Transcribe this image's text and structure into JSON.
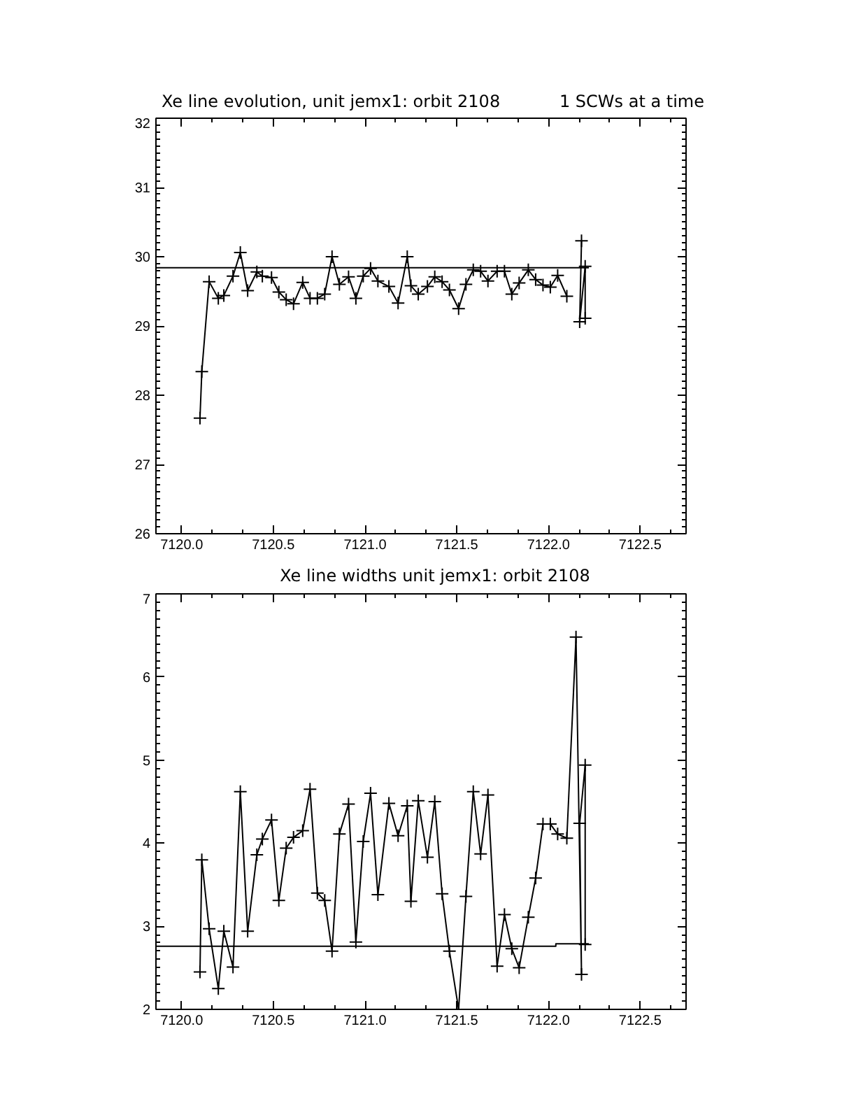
{
  "chart_data": [
    {
      "type": "line",
      "title": "Xe line evolution, unit jemx1: orbit 2108",
      "annotations": [
        "1 SCWs at a time"
      ],
      "x": [
        7120.1,
        7120.11,
        7120.15,
        7120.2,
        7120.23,
        7120.28,
        7120.32,
        7120.36,
        7120.41,
        7120.44,
        7120.49,
        7120.53,
        7120.57,
        7120.61,
        7120.66,
        7120.7,
        7120.74,
        7120.78,
        7120.82,
        7120.86,
        7120.91,
        7120.95,
        7120.99,
        7121.03,
        7121.07,
        7121.13,
        7121.18,
        7121.23,
        7121.25,
        7121.29,
        7121.34,
        7121.38,
        7121.42,
        7121.46,
        7121.51,
        7121.55,
        7121.59,
        7121.63,
        7121.67,
        7121.72,
        7121.76,
        7121.8,
        7121.84,
        7121.89,
        7121.93,
        7121.97,
        7122.01,
        7122.05,
        7122.1,
        7122.15,
        7122.18,
        7122.17,
        7122.2,
        7122.2
      ],
      "series": [
        {
          "color": "#000000",
          "values": [
            27.67,
            28.34,
            29.64,
            29.4,
            29.44,
            29.72,
            30.06,
            29.51,
            29.78,
            29.72,
            29.7,
            29.49,
            29.38,
            29.32,
            29.63,
            29.4,
            29.4,
            29.46,
            30.0,
            29.6,
            29.71,
            29.4,
            29.72,
            29.83,
            29.65,
            29.57,
            29.33,
            30.0,
            29.58,
            29.46,
            29.57,
            29.71,
            29.64,
            29.52,
            29.25,
            29.6,
            29.81,
            29.79,
            29.65,
            29.79,
            29.79,
            29.46,
            29.62,
            29.81,
            29.67,
            29.59,
            29.56,
            29.73,
            29.43,
            null,
            30.23,
            29.06,
            29.86,
            29.11
          ]
        },
        {
          "type": "line",
          "marker": "none",
          "color": "#000000",
          "x": [
            7119.86,
            7122.22
          ],
          "values": [
            29.84,
            29.84
          ]
        }
      ],
      "xlim": [
        7119.86,
        7122.75
      ],
      "xticks": [
        {
          "value": 7120,
          "label": "7120.0"
        },
        7120.5,
        {
          "value": 7121,
          "label": "7121.0"
        },
        7121.5,
        {
          "value": 7122,
          "label": "7122.0"
        },
        7122.5
      ],
      "ylim": [
        26,
        32
      ],
      "yticks": [
        26,
        27,
        28,
        29,
        30,
        31,
        32
      ],
      "grid": false,
      "marker": "cross",
      "line_style": "solid"
    },
    {
      "type": "line",
      "title": "Xe line widths unit jemx1: orbit 2108",
      "x": [
        7120.1,
        7120.11,
        7120.15,
        7120.2,
        7120.23,
        7120.28,
        7120.32,
        7120.36,
        7120.41,
        7120.44,
        7120.49,
        7120.53,
        7120.57,
        7120.61,
        7120.66,
        7120.7,
        7120.74,
        7120.78,
        7120.82,
        7120.86,
        7120.91,
        7120.95,
        7120.99,
        7121.03,
        7121.07,
        7121.13,
        7121.18,
        7121.23,
        7121.25,
        7121.29,
        7121.34,
        7121.38,
        7121.42,
        7121.46,
        7121.51,
        7121.55,
        7121.59,
        7121.63,
        7121.67,
        7121.72,
        7121.76,
        7121.8,
        7121.84,
        7121.89,
        7121.93,
        7121.97,
        7122.01,
        7122.05,
        7122.1,
        7122.15,
        7122.18,
        7122.17,
        7122.2,
        7122.2
      ],
      "series": [
        {
          "color": "#000000",
          "values": [
            2.45,
            3.8,
            2.97,
            2.25,
            2.94,
            2.51,
            4.62,
            2.94,
            3.86,
            4.05,
            4.28,
            3.31,
            3.94,
            4.07,
            4.15,
            4.65,
            3.4,
            3.31,
            2.7,
            4.11,
            4.47,
            2.81,
            4.02,
            4.6,
            3.38,
            4.48,
            4.09,
            4.45,
            3.3,
            4.51,
            3.83,
            4.5,
            3.39,
            2.7,
            2.0,
            3.36,
            4.62,
            3.87,
            4.58,
            2.52,
            3.14,
            2.73,
            2.5,
            3.11,
            3.58,
            4.23,
            4.23,
            4.11,
            4.06,
            6.48,
            2.42,
            4.24,
            4.94,
            2.78
          ]
        },
        {
          "type": "line",
          "marker": "none",
          "color": "#000000",
          "x": [
            7119.86,
            7122.04,
            7122.04,
            7122.22
          ],
          "values": [
            2.76,
            2.76,
            2.79,
            2.79
          ]
        }
      ],
      "xlim": [
        7119.86,
        7122.75
      ],
      "xticks": [
        {
          "value": 7120,
          "label": "7120.0"
        },
        7120.5,
        {
          "value": 7121,
          "label": "7121.0"
        },
        7121.5,
        {
          "value": 7122,
          "label": "7122.0"
        },
        7122.5
      ],
      "ylim": [
        2,
        7
      ],
      "yticks": [
        2,
        3,
        4,
        5,
        6,
        7
      ],
      "grid": false,
      "marker": "cross",
      "line_style": "solid"
    }
  ]
}
